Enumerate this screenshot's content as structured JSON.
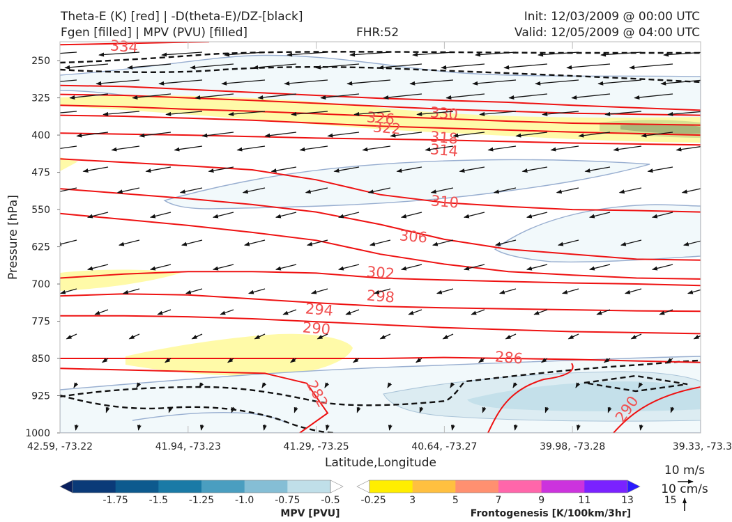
{
  "header": {
    "title_line1": "Theta-E (K) [red] | -D(theta-E)/DZ-[black]",
    "title_line2": "Fgen [filled] | MPV (PVU) [filled]",
    "fhr": "FHR:52",
    "init": "Init: 12/03/2009 @ 00:00 UTC",
    "valid": "Valid: 12/05/2009 @ 04:00 UTC"
  },
  "chart_data": {
    "type": "cross-section",
    "xlabel": "Latitude,Longitude",
    "ylabel": "Pressure [hPa]",
    "y_ticks": [
      "250",
      "325",
      "400",
      "475",
      "550",
      "625",
      "700",
      "775",
      "850",
      "925",
      "1000"
    ],
    "ylim": [
      212,
      1000
    ],
    "y_inverted": true,
    "x_ticks": [
      "42.59, -73.22",
      "41.94, -73.23",
      "41.29, -73.25",
      "40.64, -73.27",
      "39.98, -73.28",
      "39.33, -73.3"
    ],
    "theta_e_contours": [
      {
        "label": "334",
        "p": [
          218,
          212
        ]
      },
      {
        "label": "330",
        "p": [
          300,
          302,
          308,
          314,
          320,
          326,
          330,
          334,
          340,
          345,
          350
        ]
      },
      {
        "label": "326",
        "p": [
          318,
          320,
          325,
          330,
          336,
          342,
          348,
          352,
          356,
          358,
          360
        ]
      },
      {
        "label": "322",
        "p": [
          340,
          343,
          348,
          352,
          357,
          362,
          367,
          372,
          376,
          378,
          380
        ]
      },
      {
        "label": "318",
        "p": [
          360,
          362,
          366,
          370,
          376,
          382,
          386,
          390,
          394,
          397,
          400
        ]
      },
      {
        "label": "314",
        "p": [
          396,
          398,
          400,
          403,
          406,
          408,
          410,
          413,
          416,
          418,
          420
        ]
      },
      {
        "label": "310",
        "p": [
          448,
          455,
          462,
          470,
          490,
          520,
          536,
          544,
          550,
          552,
          555
        ]
      },
      {
        "label": "306",
        "p": [
          508,
          518,
          528,
          540,
          555,
          580,
          610,
          630,
          640,
          650,
          652
        ]
      },
      {
        "label": "302",
        "p": [
          558,
          570,
          582,
          596,
          612,
          640,
          660,
          675,
          682,
          688,
          690
        ]
      },
      {
        "label": "298",
        "p": [
          688,
          680,
          675,
          675,
          678,
          688,
          692,
          695,
          698,
          700,
          703
        ]
      },
      {
        "label": "294",
        "p": [
          724,
          720,
          722,
          730,
          738,
          745,
          748,
          750,
          752,
          754,
          755
        ]
      },
      {
        "label": "290",
        "p": [
          764,
          764,
          766,
          770,
          776,
          782,
          788,
          792,
          796,
          798,
          800
        ]
      },
      {
        "label": "286",
        "p": [
          850,
          850,
          850,
          850,
          850,
          850,
          848,
          850,
          852,
          855,
          858
        ]
      },
      {
        "label": "282",
        "p": [
          870,
          880,
          900,
          1000
        ]
      }
    ],
    "mpv_colorbar": {
      "label": "MPV [PVU]",
      "ticks": [
        "-1.75",
        "-1.5",
        "-1.25",
        "-1.0",
        "-0.75",
        "-0.5",
        "-0.25"
      ],
      "colors": [
        "#08205e",
        "#0a3a78",
        "#0d5a8e",
        "#1a7aa6",
        "#4a9ec0",
        "#85bed5",
        "#c0dfe9",
        "#ffffff"
      ]
    },
    "fgen_colorbar": {
      "label": "Frontogenesis [K/100km/3hr]",
      "ticks": [
        "3",
        "5",
        "7",
        "9",
        "11",
        "13",
        "15"
      ],
      "colors": [
        "#ffffff",
        "#ffee00",
        "#ffc040",
        "#ff9070",
        "#ff66aa",
        "#cc33dd",
        "#7a22ff",
        "#2a1aff"
      ]
    },
    "wind_key": {
      "horizontal": "10 m/s",
      "vertical": "10 cm/s"
    }
  }
}
